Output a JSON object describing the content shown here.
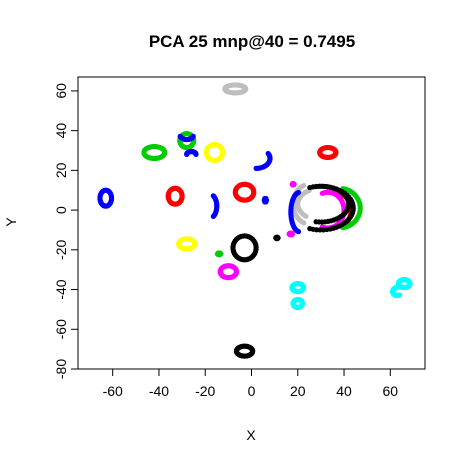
{
  "chart_data": {
    "type": "scatter",
    "title": "PCA 25 mnp@40 = 0.7495",
    "xlabel": "X",
    "ylabel": "Y",
    "xlim": [
      -75,
      75
    ],
    "ylim": [
      -80,
      67
    ],
    "xticks": [
      -60,
      -40,
      -20,
      0,
      20,
      40,
      60
    ],
    "yticks": [
      -80,
      -60,
      -40,
      -20,
      0,
      20,
      40,
      60
    ],
    "grid": false,
    "legend": "none",
    "series_colors": {
      "black": "#000000",
      "red": "#ff0000",
      "green": "#00cd00",
      "blue": "#0000ff",
      "cyan": "#00ffff",
      "magenta": "#ff00ff",
      "yellow": "#ffff00",
      "gray": "#bebebe"
    },
    "series": [
      {
        "color": "gray",
        "clusters": [
          {
            "shape": "ring",
            "cx": -7,
            "cy": 61,
            "rx": 4.5,
            "ry": 2
          },
          {
            "shape": "arc",
            "cx": 25,
            "cy": 3,
            "rx": 7,
            "ry": 10,
            "from": 110,
            "to": 250
          },
          {
            "shape": "arc",
            "cx": 30,
            "cy": 3,
            "rx": 10,
            "ry": 8,
            "from": 120,
            "to": 230
          }
        ]
      },
      {
        "color": "red",
        "clusters": [
          {
            "shape": "ring",
            "cx": 33,
            "cy": 29,
            "rx": 3.5,
            "ry": 2.5
          },
          {
            "shape": "ring",
            "cx": -33,
            "cy": 7,
            "rx": 3,
            "ry": 4
          },
          {
            "shape": "ring",
            "cx": -3,
            "cy": 9,
            "rx": 4,
            "ry": 4
          },
          {
            "shape": "arc",
            "cx": 38,
            "cy": 0,
            "rx": 5,
            "ry": 8,
            "from": -100,
            "to": 100
          }
        ]
      },
      {
        "color": "green",
        "clusters": [
          {
            "shape": "ring",
            "cx": -42,
            "cy": 29,
            "rx": 4.5,
            "ry": 3
          },
          {
            "shape": "ring",
            "cx": -28,
            "cy": 35,
            "rx": 3,
            "ry": 3.5
          },
          {
            "shape": "arc",
            "cx": 38,
            "cy": 1,
            "rx": 9,
            "ry": 10,
            "from": -80,
            "to": 80
          },
          {
            "shape": "blob",
            "cx": -14,
            "cy": -22,
            "rx": 1.5,
            "ry": 1
          }
        ]
      },
      {
        "color": "blue",
        "clusters": [
          {
            "shape": "ring",
            "cx": -63,
            "cy": 6,
            "rx": 2.5,
            "ry": 4
          },
          {
            "shape": "arc",
            "cx": -28,
            "cy": 38,
            "rx": 3,
            "ry": 2.5,
            "from": 200,
            "to": 340
          },
          {
            "shape": "arc",
            "cx": -26,
            "cy": 28,
            "rx": 2,
            "ry": 1.5,
            "from": 0,
            "to": 180
          },
          {
            "shape": "arc",
            "cx": 2,
            "cy": 26,
            "rx": 6,
            "ry": 5,
            "from": -90,
            "to": 30
          },
          {
            "shape": "arc",
            "cx": -18,
            "cy": 2,
            "rx": 3,
            "ry": 6,
            "from": -60,
            "to": 60
          },
          {
            "shape": "arc",
            "cx": 21,
            "cy": -1,
            "rx": 4,
            "ry": 10,
            "from": 100,
            "to": 260
          },
          {
            "shape": "blob",
            "cx": 6,
            "cy": 5,
            "rx": 1,
            "ry": 2
          }
        ]
      },
      {
        "color": "yellow",
        "clusters": [
          {
            "shape": "ring",
            "cx": -16,
            "cy": 29,
            "rx": 3.5,
            "ry": 4
          },
          {
            "shape": "ring",
            "cx": -28,
            "cy": -17,
            "rx": 3.5,
            "ry": 2.5
          }
        ]
      },
      {
        "color": "magenta",
        "clusters": [
          {
            "shape": "ring",
            "cx": -10,
            "cy": -31,
            "rx": 3.5,
            "ry": 3
          },
          {
            "shape": "arc",
            "cx": 33,
            "cy": 0,
            "rx": 7,
            "ry": 9,
            "from": -110,
            "to": 110
          },
          {
            "shape": "blob",
            "cx": 17,
            "cy": -12,
            "rx": 1.5,
            "ry": 1
          },
          {
            "shape": "blob",
            "cx": 18,
            "cy": 13,
            "rx": 0.8,
            "ry": 0.8
          }
        ]
      },
      {
        "color": "black",
        "clusters": [
          {
            "shape": "ring",
            "cx": -3,
            "cy": -19,
            "rx": 5,
            "ry": 6
          },
          {
            "shape": "ring",
            "cx": -3,
            "cy": -71,
            "rx": 3.5,
            "ry": 2.5
          },
          {
            "shape": "arc",
            "cx": 30,
            "cy": 1,
            "rx": 14,
            "ry": 11,
            "from": -110,
            "to": 110
          },
          {
            "shape": "arc",
            "cx": 30,
            "cy": 3,
            "rx": 12,
            "ry": 9,
            "from": -100,
            "to": 100
          },
          {
            "shape": "blob",
            "cx": 11,
            "cy": -14,
            "rx": 1,
            "ry": 0.8
          }
        ]
      },
      {
        "color": "cyan",
        "clusters": [
          {
            "shape": "ring",
            "cx": 20,
            "cy": -39,
            "rx": 2.5,
            "ry": 2
          },
          {
            "shape": "ring",
            "cx": 20,
            "cy": -47,
            "rx": 2,
            "ry": 2
          },
          {
            "shape": "arc",
            "cx": 66,
            "cy": -37,
            "rx": 2.5,
            "ry": 2,
            "from": 0,
            "to": 360
          },
          {
            "shape": "arc",
            "cx": 63,
            "cy": -41,
            "rx": 2,
            "ry": 2,
            "from": 90,
            "to": 300
          }
        ]
      }
    ]
  }
}
